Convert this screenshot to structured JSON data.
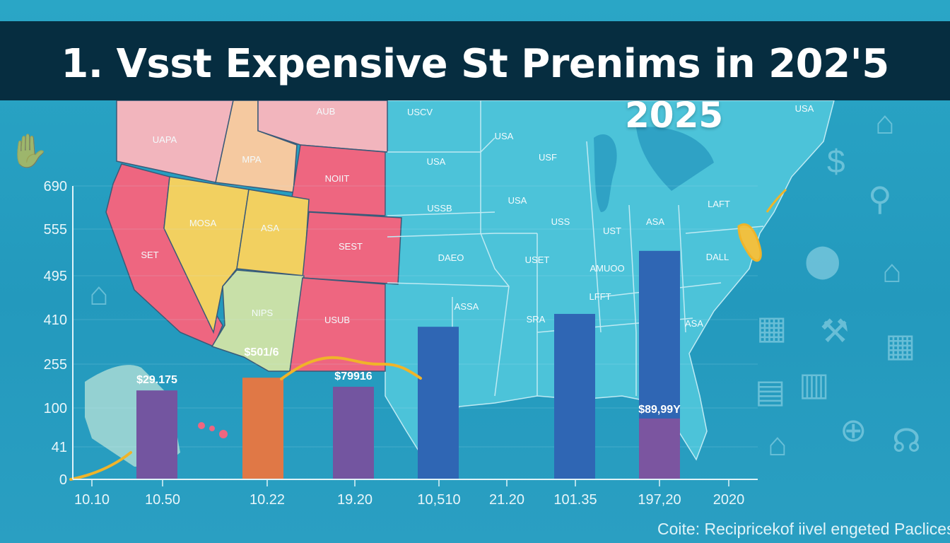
{
  "header": {
    "title": "1. Vsst Expensive St Prenims in 202'5",
    "subtitle_year": "2025"
  },
  "map": {
    "state_labels": [
      "UAPA",
      "MPA",
      "AUB",
      "NOIIT",
      "SET",
      "MOSA",
      "ASA",
      "SEST",
      "NIPS",
      "USUB",
      "USCV",
      "USA",
      "USA",
      "USSB",
      "DAEO",
      "ASSA",
      "USA",
      "USF",
      "USS",
      "UST",
      "ASA",
      "USET",
      "LAFT",
      "DALL",
      "AMUOO",
      "LFFT",
      "SRA",
      "ASA",
      "USA"
    ],
    "colors": {
      "west_pink": "#ee6680",
      "light_pink": "#f2b5bd",
      "peach": "#f5c9a0",
      "yellow": "#f2d060",
      "light_green": "#c8e0a8",
      "rest": "#4cc3d9"
    }
  },
  "chart_data": {
    "type": "bar",
    "title": "1. Vsst Expensive St Prenims in 202'5",
    "xlabel": "",
    "ylabel": "",
    "y_ticks": [
      0,
      41,
      100,
      255,
      410,
      495,
      555,
      690
    ],
    "y_tick_labels": [
      "0",
      "41",
      "100",
      "255",
      "410",
      "495",
      "555",
      "690"
    ],
    "x_tick_labels": [
      "10.10",
      "10.50",
      "10.22",
      "19.20",
      "10,510",
      "21.20",
      "101.35",
      "197,20",
      "2020"
    ],
    "grid": true,
    "bars": [
      {
        "category": "10.50",
        "value": 162,
        "color": "#7355a0",
        "label": "$29.175"
      },
      {
        "category": "10.22",
        "value": 207,
        "color": "#e07846",
        "label": "$501/6"
      },
      {
        "category": "19.20",
        "value": 175,
        "color": "#7355a0",
        "label": "$79916"
      },
      {
        "category": "10,510",
        "value": 385,
        "color": "#2f66b4",
        "label": ""
      },
      {
        "category": "101.35",
        "value": 421,
        "color": "#2f66b4",
        "label": ""
      },
      {
        "category": "197,20",
        "value": 527,
        "color": "#2f66b4",
        "label": "$89,99Y",
        "segment_value": 84,
        "segment_color": "#7b55a0"
      }
    ],
    "trend_line_color": "#f0b429"
  },
  "side_icons": [
    "house-icon",
    "dollar-icon",
    "search-dollar-icon",
    "location-pin-icon",
    "house-icon",
    "building-icon",
    "tools-icon",
    "calendar-icon",
    "document-icon",
    "office-building-icon",
    "plus-circle-icon",
    "house-icon",
    "stethoscope-icon",
    "house-icon",
    "hand-coin-icon"
  ],
  "footer": {
    "source": "Coite: Recipricekof iivel engeted Paclicess"
  }
}
